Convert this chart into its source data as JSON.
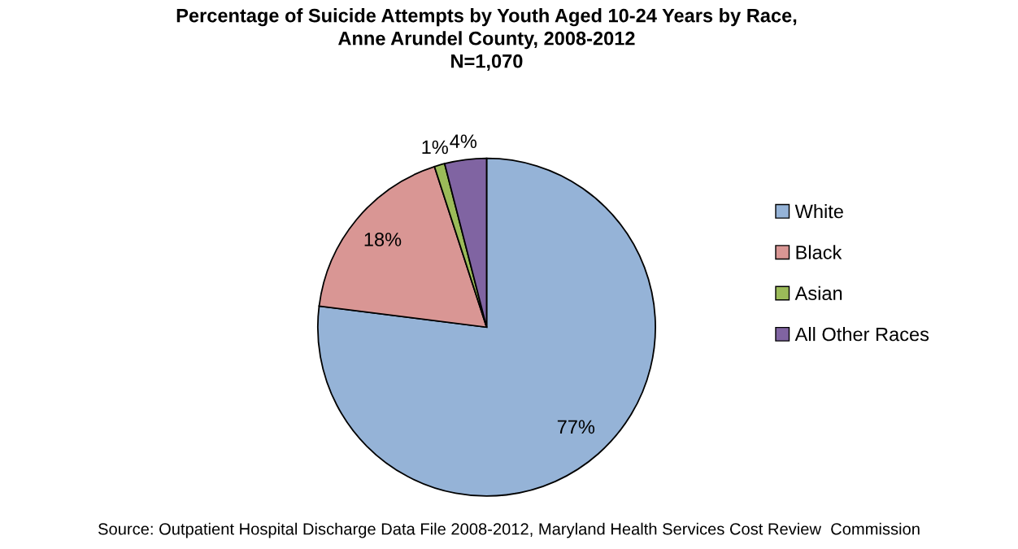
{
  "chart_data": {
    "type": "pie",
    "title": "Percentage of Suicide Attempts by Youth Aged 10-24 Years by Race,\nAnne Arundel County, 2008-2012\nN=1,070",
    "categories": [
      "White",
      "Black",
      "Asian",
      "All Other Races"
    ],
    "values": [
      77,
      18,
      1,
      4
    ],
    "colors": [
      "#95b3d7",
      "#d99694",
      "#9bbb59",
      "#8064a2"
    ],
    "value_labels": [
      "77%",
      "18%",
      "1%",
      "4%"
    ],
    "legend": "right",
    "annotations": [
      "Source: Outpatient Hospital Discharge Data File 2008-2012, Maryland Health Services Cost Review  Commission"
    ]
  }
}
